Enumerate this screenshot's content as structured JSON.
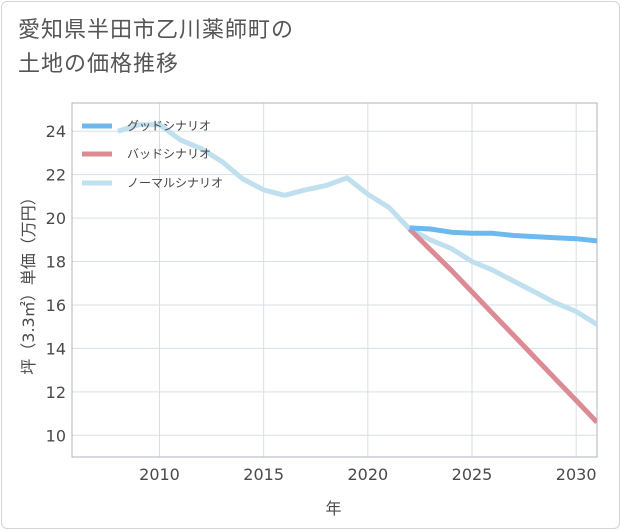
{
  "title_line1": "愛知県半田市乙川薬師町の",
  "title_line2": "土地の価格推移",
  "chart_data": {
    "type": "line",
    "xlabel": "年",
    "ylabel": "坪（3.3㎡）単価（万円）",
    "xlim": [
      2005.8,
      2031
    ],
    "ylim": [
      9,
      25.3
    ],
    "xticks": [
      2010,
      2015,
      2020,
      2025,
      2030
    ],
    "yticks": [
      10,
      12,
      14,
      16,
      18,
      20,
      22,
      24
    ],
    "legend_position": "top-left",
    "series": [
      {
        "name": "グッドシナリオ",
        "color": "#6db8ec",
        "x": [
          2022,
          2023,
          2024,
          2025,
          2026,
          2027,
          2028,
          2029,
          2030,
          2031
        ],
        "values": [
          19.55,
          19.5,
          19.35,
          19.3,
          19.3,
          19.2,
          19.15,
          19.1,
          19.05,
          18.95
        ]
      },
      {
        "name": "バッドシナリオ",
        "color": "#dc8b94",
        "x": [
          2022,
          2023,
          2024,
          2025,
          2026,
          2027,
          2028,
          2029,
          2030,
          2031
        ],
        "values": [
          19.5,
          18.55,
          17.6,
          16.6,
          15.6,
          14.6,
          13.6,
          12.6,
          11.6,
          10.6
        ]
      },
      {
        "name": "ノーマルシナリオ",
        "color": "#c0e0ef",
        "x": [
          2008,
          2009,
          2010,
          2011,
          2012,
          2013,
          2014,
          2015,
          2016,
          2017,
          2018,
          2019,
          2020,
          2021,
          2022,
          2023,
          2024,
          2025,
          2026,
          2027,
          2028,
          2029,
          2030,
          2031
        ],
        "values": [
          24.0,
          24.3,
          24.3,
          23.6,
          23.2,
          22.6,
          21.8,
          21.3,
          21.05,
          21.3,
          21.5,
          21.85,
          21.1,
          20.5,
          19.5,
          19.0,
          18.6,
          18.0,
          17.6,
          17.1,
          16.6,
          16.1,
          15.7,
          15.1
        ]
      }
    ]
  }
}
